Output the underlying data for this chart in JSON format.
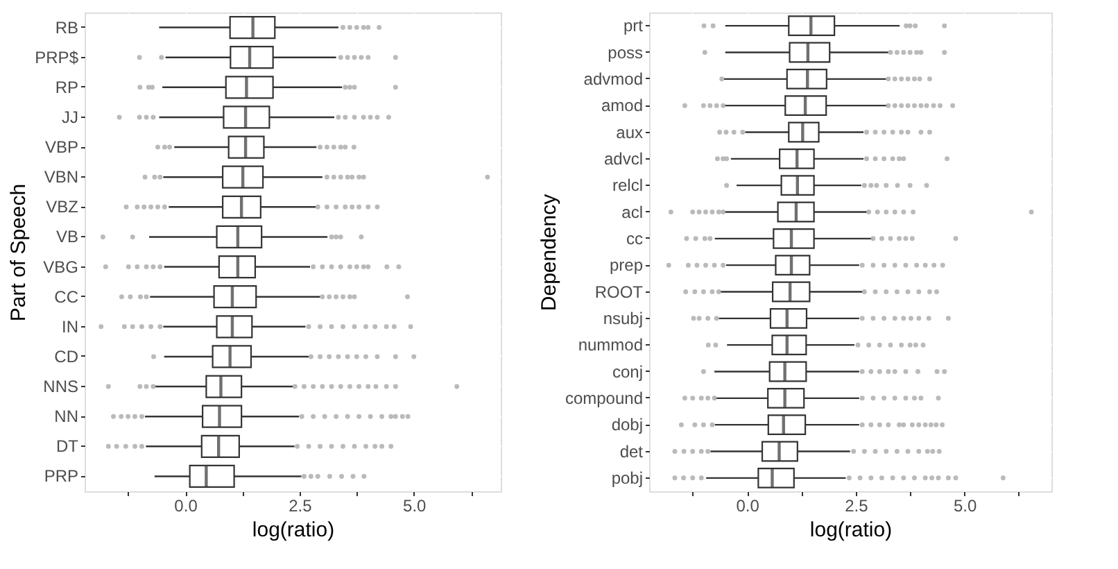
{
  "chart_data": [
    {
      "type": "box",
      "orientation": "horizontal",
      "xlabel": "log(ratio)",
      "ylabel": "Part of Speech",
      "grid": true,
      "xlim": [
        -2.2,
        6.9
      ],
      "xticks": [
        {
          "value": -1.25,
          "label": null
        },
        {
          "value": 0,
          "label": "0.0"
        },
        {
          "value": 1.25,
          "label": null
        },
        {
          "value": 2.5,
          "label": "2.5"
        },
        {
          "value": 3.75,
          "label": null
        },
        {
          "value": 5,
          "label": "5.0"
        },
        {
          "value": 6.25,
          "label": null
        }
      ],
      "categories": [
        "RB",
        "PRP$",
        "RP",
        "JJ",
        "VBP",
        "VBN",
        "VBZ",
        "VB",
        "VBG",
        "CC",
        "IN",
        "CD",
        "NNS",
        "NN",
        "DT",
        "PRP"
      ],
      "boxes": [
        {
          "low": -0.57,
          "q1": 0.98,
          "median": 1.48,
          "q3": 1.96,
          "high": 3.35,
          "outliers": [
            3.45,
            3.6,
            3.75,
            3.9,
            4.0,
            4.24
          ]
        },
        {
          "low": -0.43,
          "q1": 0.99,
          "median": 1.41,
          "q3": 1.92,
          "high": 3.3,
          "outliers": [
            -1.0,
            -0.52,
            3.4,
            3.55,
            3.7,
            3.85,
            4.0,
            4.6
          ]
        },
        {
          "low": -0.5,
          "q1": 0.89,
          "median": 1.34,
          "q3": 1.92,
          "high": 3.43,
          "outliers": [
            -0.99,
            -0.8,
            -0.72,
            3.5,
            3.6,
            3.7,
            4.6
          ]
        },
        {
          "low": -0.57,
          "q1": 0.84,
          "median": 1.32,
          "q3": 1.84,
          "high": 3.26,
          "outliers": [
            -1.44,
            -1.0,
            -0.85,
            -0.7,
            3.35,
            3.5,
            3.7,
            3.9,
            4.05,
            4.2,
            4.45
          ]
        },
        {
          "low": -0.24,
          "q1": 0.95,
          "median": 1.32,
          "q3": 1.72,
          "high": 2.87,
          "outliers": [
            -0.6,
            -0.45,
            -0.34,
            2.95,
            3.1,
            3.25,
            3.4,
            3.5,
            3.69
          ]
        },
        {
          "low": -0.48,
          "q1": 0.82,
          "median": 1.26,
          "q3": 1.7,
          "high": 3.0,
          "outliers": [
            -0.88,
            -0.67,
            -0.55,
            3.1,
            3.25,
            3.4,
            3.55,
            3.65,
            3.8,
            3.9,
            6.61
          ]
        },
        {
          "low": -0.36,
          "q1": 0.82,
          "median": 1.23,
          "q3": 1.65,
          "high": 2.85,
          "outliers": [
            -1.29,
            -1.05,
            -0.9,
            -0.75,
            -0.6,
            -0.45,
            2.9,
            3.1,
            3.3,
            3.5,
            3.65,
            3.8,
            4.0,
            4.2
          ]
        },
        {
          "low": -0.79,
          "q1": 0.69,
          "median": 1.15,
          "q3": 1.67,
          "high": 3.11,
          "outliers": [
            -1.8,
            -1.15,
            3.2,
            3.3,
            3.4,
            3.85
          ]
        },
        {
          "low": -0.46,
          "q1": 0.74,
          "median": 1.15,
          "q3": 1.53,
          "high": 2.73,
          "outliers": [
            -1.74,
            -1.24,
            -1.05,
            -0.85,
            -0.7,
            -0.55,
            2.8,
            3.0,
            3.2,
            3.4,
            3.6,
            3.75,
            3.9,
            4.0,
            4.41,
            4.67
          ]
        },
        {
          "low": -0.77,
          "q1": 0.63,
          "median": 1.03,
          "q3": 1.55,
          "high": 2.95,
          "outliers": [
            -1.39,
            -1.2,
            -0.98,
            -0.85,
            3.0,
            3.15,
            3.3,
            3.45,
            3.6,
            3.7,
            4.86
          ]
        },
        {
          "low": -0.48,
          "q1": 0.69,
          "median": 1.03,
          "q3": 1.46,
          "high": 2.63,
          "outliers": [
            -1.84,
            -1.33,
            -1.15,
            -0.95,
            -0.75,
            -0.55,
            2.7,
            2.95,
            3.2,
            3.45,
            3.7,
            3.95,
            4.15,
            4.4,
            4.57,
            4.93
          ]
        },
        {
          "low": -0.46,
          "q1": 0.6,
          "median": 0.98,
          "q3": 1.44,
          "high": 2.7,
          "outliers": [
            -0.69,
            2.75,
            2.95,
            3.15,
            3.35,
            3.55,
            3.75,
            3.95,
            4.2,
            4.6,
            5.0
          ]
        },
        {
          "low": -0.67,
          "q1": 0.46,
          "median": 0.78,
          "q3": 1.23,
          "high": 2.35,
          "outliers": [
            -1.68,
            -0.99,
            -0.85,
            -0.7,
            2.4,
            2.6,
            2.8,
            3.0,
            3.2,
            3.4,
            3.6,
            3.8,
            4.0,
            4.17,
            4.4,
            4.6,
            5.94
          ]
        },
        {
          "low": -0.88,
          "q1": 0.38,
          "median": 0.75,
          "q3": 1.23,
          "high": 2.49,
          "outliers": [
            -1.57,
            -1.4,
            -1.25,
            -1.1,
            -0.95,
            2.55,
            2.8,
            3.05,
            3.3,
            3.55,
            3.8,
            4.05,
            4.3,
            4.5,
            4.6,
            4.75,
            4.87
          ]
        },
        {
          "low": -0.86,
          "q1": 0.36,
          "median": 0.73,
          "q3": 1.18,
          "high": 2.39,
          "outliers": [
            -1.68,
            -1.5,
            -1.3,
            -1.1,
            -0.95,
            2.45,
            2.7,
            2.95,
            3.2,
            3.45,
            3.7,
            3.95,
            4.15,
            4.3,
            4.5
          ]
        },
        {
          "low": -0.67,
          "q1": 0.1,
          "median": 0.46,
          "q3": 1.07,
          "high": 2.54,
          "outliers": [
            2.6,
            2.75,
            2.9,
            3.16,
            3.42,
            3.67,
            3.91
          ]
        }
      ]
    },
    {
      "type": "box",
      "orientation": "horizontal",
      "xlabel": "log(ratio)",
      "ylabel": "Dependency",
      "grid": true,
      "xlim": [
        -2.25,
        7.0
      ],
      "xticks": [
        {
          "value": -1.25,
          "label": null
        },
        {
          "value": 0,
          "label": "0.0"
        },
        {
          "value": 1.25,
          "label": null
        },
        {
          "value": 2.5,
          "label": "2.5"
        },
        {
          "value": 3.75,
          "label": null
        },
        {
          "value": 5,
          "label": "5.0"
        },
        {
          "value": 6.25,
          "label": null
        }
      ],
      "categories": [
        "prt",
        "poss",
        "advmod",
        "amod",
        "aux",
        "advcl",
        "relcl",
        "acl",
        "cc",
        "prep",
        "ROOT",
        "nsubj",
        "nummod",
        "conj",
        "compound",
        "dobj",
        "det",
        "pobj"
      ],
      "boxes": [
        {
          "low": -0.5,
          "q1": 0.96,
          "median": 1.47,
          "q3": 2.01,
          "high": 3.51,
          "outliers": [
            -0.99,
            -0.78,
            3.66,
            3.75,
            3.87,
            4.54
          ]
        },
        {
          "low": -0.5,
          "q1": 0.98,
          "median": 1.4,
          "q3": 1.9,
          "high": 3.25,
          "outliers": [
            -0.97,
            3.3,
            3.45,
            3.6,
            3.75,
            3.9,
            4.0,
            4.54
          ]
        },
        {
          "low": -0.53,
          "q1": 0.92,
          "median": 1.39,
          "q3": 1.83,
          "high": 3.2,
          "outliers": [
            -0.58,
            3.25,
            3.4,
            3.55,
            3.7,
            3.85,
            3.97,
            4.2
          ]
        },
        {
          "low": -0.53,
          "q1": 0.88,
          "median": 1.34,
          "q3": 1.82,
          "high": 3.23,
          "outliers": [
            -1.43,
            -1.0,
            -0.85,
            -0.7,
            -0.55,
            3.25,
            3.4,
            3.55,
            3.7,
            3.85,
            4.0,
            4.13,
            4.29,
            4.44,
            4.73
          ]
        },
        {
          "low": -0.04,
          "q1": 0.96,
          "median": 1.28,
          "q3": 1.65,
          "high": 2.68,
          "outliers": [
            -0.63,
            -0.48,
            -0.3,
            -0.1,
            2.75,
            2.95,
            3.15,
            3.35,
            3.55,
            3.7,
            4.0,
            4.2
          ]
        },
        {
          "low": -0.37,
          "q1": 0.75,
          "median": 1.15,
          "q3": 1.54,
          "high": 2.68,
          "outliers": [
            -0.68,
            -0.55,
            -0.47,
            2.75,
            2.95,
            3.15,
            3.35,
            3.5,
            3.6,
            4.6
          ]
        },
        {
          "low": -0.24,
          "q1": 0.79,
          "median": 1.16,
          "q3": 1.54,
          "high": 2.63,
          "outliers": [
            -0.47,
            2.7,
            2.85,
            2.98,
            3.2,
            3.46,
            3.75,
            4.13
          ]
        },
        {
          "low": -0.52,
          "q1": 0.71,
          "median": 1.13,
          "q3": 1.54,
          "high": 2.76,
          "outliers": [
            -1.75,
            -1.25,
            -1.1,
            -0.95,
            -0.8,
            -0.65,
            -0.55,
            2.8,
            3.0,
            3.2,
            3.4,
            3.6,
            3.82,
            6.54
          ]
        },
        {
          "low": -0.74,
          "q1": 0.61,
          "median": 1.02,
          "q3": 1.54,
          "high": 2.89,
          "outliers": [
            -1.39,
            -1.18,
            -0.97,
            -0.85,
            2.9,
            3.1,
            3.3,
            3.5,
            3.65,
            3.8,
            4.8
          ]
        },
        {
          "low": -0.48,
          "q1": 0.66,
          "median": 1.02,
          "q3": 1.44,
          "high": 2.58,
          "outliers": [
            -1.8,
            -1.35,
            -1.15,
            -0.95,
            -0.75,
            -0.55,
            2.65,
            2.9,
            3.15,
            3.4,
            3.65,
            3.9,
            4.1,
            4.3,
            4.5
          ]
        },
        {
          "low": -0.63,
          "q1": 0.59,
          "median": 0.99,
          "q3": 1.44,
          "high": 2.66,
          "outliers": [
            -1.41,
            -1.2,
            -1.0,
            -0.8,
            -0.65,
            2.7,
            2.95,
            3.2,
            3.45,
            3.7,
            3.95,
            4.2,
            4.36
          ]
        },
        {
          "low": -0.65,
          "q1": 0.54,
          "median": 0.92,
          "q3": 1.37,
          "high": 2.58,
          "outliers": [
            -1.23,
            -1.1,
            -0.9,
            -0.7,
            2.65,
            2.9,
            3.15,
            3.4,
            3.6,
            3.77,
            3.95,
            4.18,
            4.63
          ]
        },
        {
          "low": -0.46,
          "q1": 0.58,
          "median": 0.92,
          "q3": 1.36,
          "high": 2.47,
          "outliers": [
            -0.89,
            -0.72,
            2.55,
            2.8,
            3.05,
            3.3,
            3.55,
            3.75,
            3.88,
            4.05
          ]
        },
        {
          "low": -0.75,
          "q1": 0.52,
          "median": 0.87,
          "q3": 1.36,
          "high": 2.58,
          "outliers": [
            -1.0,
            2.65,
            2.85,
            3.05,
            3.25,
            3.4,
            3.65,
            3.93,
            4.37,
            4.54
          ]
        },
        {
          "low": -0.74,
          "q1": 0.48,
          "median": 0.87,
          "q3": 1.31,
          "high": 2.58,
          "outliers": [
            -1.43,
            -1.25,
            -1.05,
            -0.9,
            -0.75,
            2.65,
            2.9,
            3.15,
            3.4,
            3.65,
            3.85,
            4.0,
            4.4
          ]
        },
        {
          "low": -0.74,
          "q1": 0.49,
          "median": 0.84,
          "q3": 1.34,
          "high": 2.58,
          "outliers": [
            -1.51,
            -1.2,
            -1.0,
            -0.8,
            2.65,
            2.85,
            3.05,
            3.25,
            3.5,
            3.6,
            3.8,
            3.95,
            4.1,
            4.23,
            4.35,
            4.49
          ]
        },
        {
          "low": -0.84,
          "q1": 0.35,
          "median": 0.74,
          "q3": 1.16,
          "high": 2.37,
          "outliers": [
            -1.66,
            -1.45,
            -1.25,
            -1.05,
            -0.9,
            2.45,
            2.7,
            2.95,
            3.2,
            3.45,
            3.7,
            3.95,
            4.15,
            4.27,
            4.42
          ]
        },
        {
          "low": -0.94,
          "q1": 0.26,
          "median": 0.58,
          "q3": 1.08,
          "high": 2.27,
          "outliers": [
            -1.66,
            -1.46,
            -1.25,
            -1.05,
            2.35,
            2.6,
            2.85,
            3.1,
            3.35,
            3.6,
            3.85,
            4.1,
            4.25,
            4.4,
            4.63,
            4.8,
            5.89
          ]
        }
      ]
    }
  ]
}
